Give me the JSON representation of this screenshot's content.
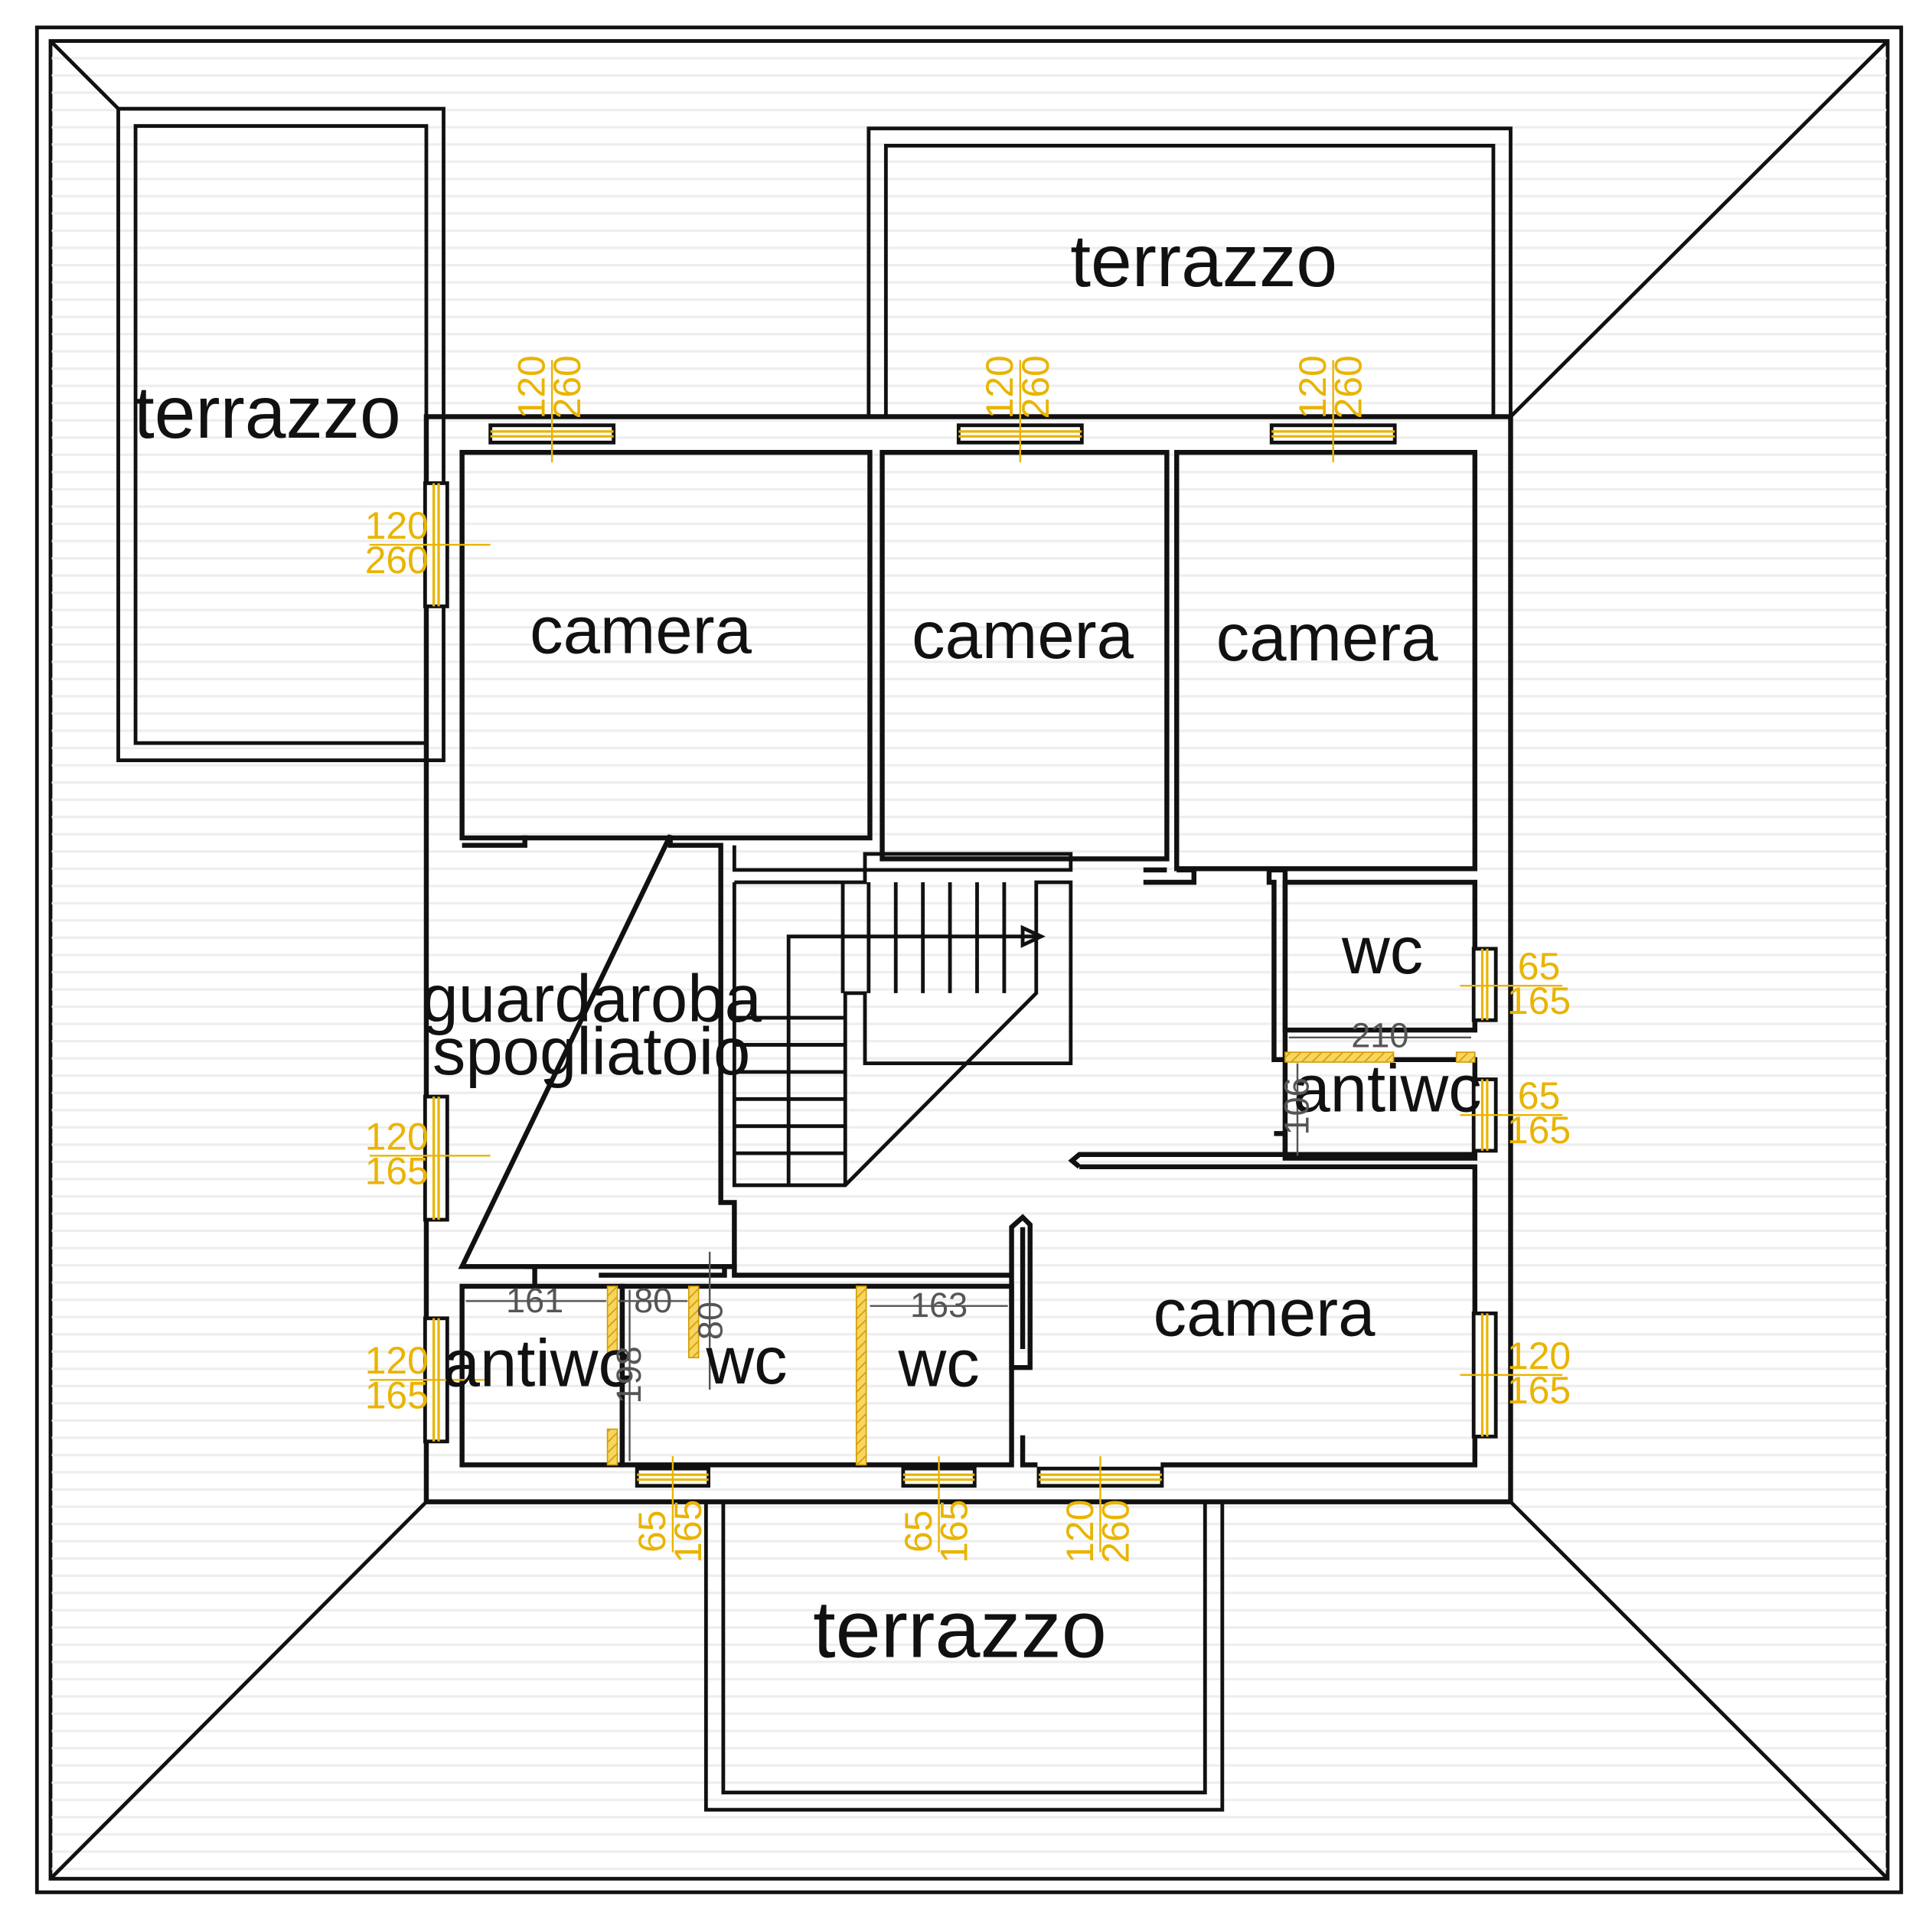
{
  "colors": {
    "wall": "#111111",
    "window": "#e9b400",
    "dimension": "#555555",
    "background": "#ffffff"
  },
  "rooms": {
    "terrazzo_nw": "terrazzo",
    "terrazzo_ne": "terrazzo",
    "terrazzo_s": "terrazzo",
    "camera_nw": "camera",
    "camera_n": "camera",
    "camera_ne": "camera",
    "camera_se": "camera",
    "guardaroba_1": "guardaroba",
    "guardaroba_2": "spogliatoio",
    "wc_e": "wc",
    "antiwc_e": "antiwc",
    "antiwc_sw": "antiwc",
    "wc_s1": "wc",
    "wc_s2": "wc"
  },
  "windows": {
    "n1": [
      "120",
      "260"
    ],
    "n2": [
      "120",
      "260"
    ],
    "n3": [
      "120",
      "260"
    ],
    "w1": [
      "120",
      "260"
    ],
    "w2": [
      "120",
      "165"
    ],
    "w3": [
      "120",
      "165"
    ],
    "e1": [
      "65",
      "165"
    ],
    "e2": [
      "65",
      "165"
    ],
    "e3": [
      "120",
      "165"
    ],
    "s1": [
      "65",
      "165"
    ],
    "s2": [
      "65",
      "165"
    ],
    "s3": [
      "120",
      "260"
    ]
  },
  "dimensions": {
    "d210": "210",
    "d106": "106",
    "d161": "161",
    "d80a": "80",
    "d80b": "80",
    "d163": "163",
    "d198": "198"
  }
}
